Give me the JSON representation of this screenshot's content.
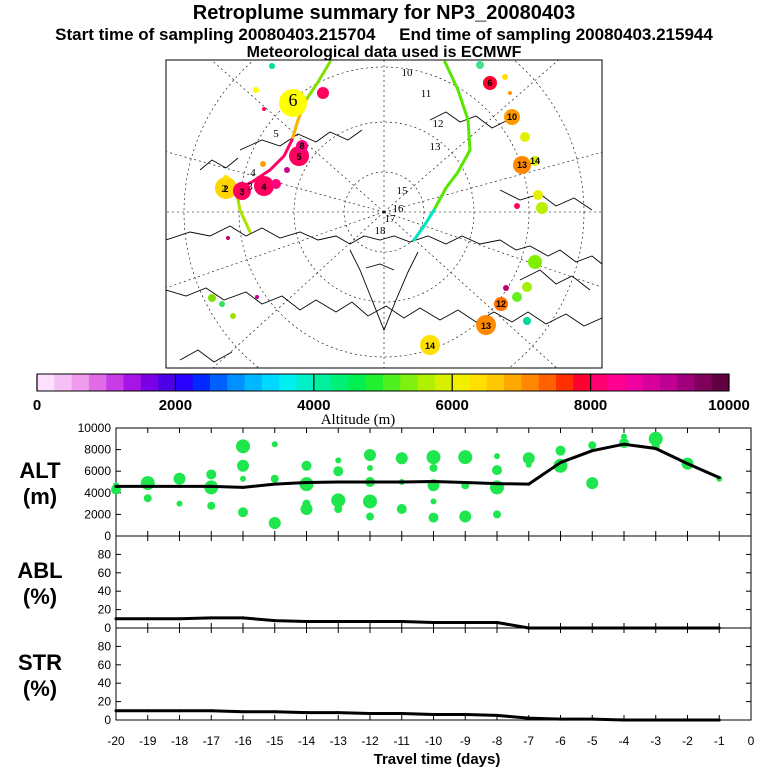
{
  "header": {
    "title": "Retroplume summary for NP3_20080403",
    "sampling_line": "Start time of sampling 20080403.215704     End time of sampling 20080403.215944",
    "met_line": "Meteorological data used is ECMWF"
  },
  "map": {
    "day_labels": [
      {
        "text": "6",
        "value": 6
      },
      {
        "text": "5",
        "value": 5
      },
      {
        "text": "4",
        "value": 4
      },
      {
        "text": "3",
        "value": 3
      },
      {
        "text": "2",
        "value": 2
      },
      {
        "text": "10",
        "value": 10
      },
      {
        "text": "11",
        "value": 11
      },
      {
        "text": "12",
        "value": 12
      },
      {
        "text": "13",
        "value": 13
      },
      {
        "text": "15",
        "value": 15
      },
      {
        "text": "16",
        "value": 16
      },
      {
        "text": "17",
        "value": 17
      },
      {
        "text": "18",
        "value": 18
      }
    ],
    "cluster_labels": [
      "6",
      "10",
      "13",
      "14",
      "12",
      "13",
      "14",
      "2",
      "3",
      "4",
      "5",
      "8"
    ]
  },
  "colorbar": {
    "title": "Altitude (m)",
    "ticks": [
      "0",
      "2000",
      "4000",
      "6000",
      "8000",
      "10000"
    ],
    "colors": [
      "#fde0fd",
      "#f6c0f6",
      "#ef9cef",
      "#e06ce8",
      "#c83ce6",
      "#a614e6",
      "#7a00e6",
      "#5000e6",
      "#2a00ff",
      "#0028ff",
      "#0060ff",
      "#0090ff",
      "#00b8ff",
      "#00d8ff",
      "#00f0f0",
      "#00f0c8",
      "#00f0a0",
      "#00f078",
      "#00f050",
      "#20f030",
      "#50f020",
      "#80f010",
      "#b0f000",
      "#d8f000",
      "#f0f000",
      "#ffe000",
      "#ffc800",
      "#ffa800",
      "#ff8800",
      "#ff6000",
      "#ff3000",
      "#ff0030",
      "#ff0070",
      "#ff0090",
      "#f000a0",
      "#d8009c",
      "#c00094",
      "#a0007c",
      "#80005c",
      "#600040"
    ]
  },
  "chart_data": [
    {
      "type": "line",
      "panel": "ALT",
      "ylabel": "ALT (m)",
      "ylabel_lines": [
        "ALT",
        "(m)"
      ],
      "ylim": [
        0,
        10000
      ],
      "yticks": [
        "0",
        "2000",
        "4000",
        "6000",
        "8000",
        "10000"
      ],
      "x": [
        -20,
        -19,
        -18,
        -17,
        -16,
        -15,
        -14,
        -13,
        -12,
        -11,
        -10,
        -9,
        -8,
        -7,
        -6,
        -5,
        -4,
        -3,
        -2,
        -1
      ],
      "mean_line": [
        4600,
        4600,
        4600,
        4600,
        4500,
        4800,
        4950,
        5000,
        5000,
        5000,
        5050,
        4950,
        4850,
        4800,
        6800,
        7900,
        8500,
        8100,
        6700,
        5400
      ],
      "clusters": [
        {
          "x": -20,
          "y": 4700
        },
        {
          "x": -20,
          "y": 4300
        },
        {
          "x": -19,
          "y": 4900
        },
        {
          "x": -19,
          "y": 3500
        },
        {
          "x": -18,
          "y": 5300
        },
        {
          "x": -18,
          "y": 3000
        },
        {
          "x": -17,
          "y": 5700
        },
        {
          "x": -17,
          "y": 4500
        },
        {
          "x": -17,
          "y": 2800
        },
        {
          "x": -16,
          "y": 6500
        },
        {
          "x": -16,
          "y": 5300
        },
        {
          "x": -16,
          "y": 2200
        },
        {
          "x": -16,
          "y": 8300
        },
        {
          "x": -15,
          "y": 5300
        },
        {
          "x": -15,
          "y": 1200
        },
        {
          "x": -15,
          "y": 8500
        },
        {
          "x": -14,
          "y": 6500
        },
        {
          "x": -14,
          "y": 4800
        },
        {
          "x": -14,
          "y": 3000
        },
        {
          "x": -14,
          "y": 2500
        },
        {
          "x": -13,
          "y": 7000
        },
        {
          "x": -13,
          "y": 6000
        },
        {
          "x": -13,
          "y": 3300
        },
        {
          "x": -13,
          "y": 2500
        },
        {
          "x": -12,
          "y": 7500
        },
        {
          "x": -12,
          "y": 6300
        },
        {
          "x": -12,
          "y": 5000
        },
        {
          "x": -12,
          "y": 3200
        },
        {
          "x": -12,
          "y": 1800
        },
        {
          "x": -11,
          "y": 7200
        },
        {
          "x": -11,
          "y": 5000
        },
        {
          "x": -11,
          "y": 2500
        },
        {
          "x": -10,
          "y": 7300
        },
        {
          "x": -10,
          "y": 6300
        },
        {
          "x": -10,
          "y": 4700
        },
        {
          "x": -10,
          "y": 3200
        },
        {
          "x": -10,
          "y": 1700
        },
        {
          "x": -9,
          "y": 7300
        },
        {
          "x": -9,
          "y": 4700
        },
        {
          "x": -9,
          "y": 1800
        },
        {
          "x": -8,
          "y": 7400
        },
        {
          "x": -8,
          "y": 6100
        },
        {
          "x": -8,
          "y": 4500
        },
        {
          "x": -8,
          "y": 2000
        },
        {
          "x": -7,
          "y": 7200
        },
        {
          "x": -7,
          "y": 6600
        },
        {
          "x": -6,
          "y": 7900
        },
        {
          "x": -6,
          "y": 6500
        },
        {
          "x": -5,
          "y": 8400
        },
        {
          "x": -5,
          "y": 4900
        },
        {
          "x": -4,
          "y": 9200
        },
        {
          "x": -4,
          "y": 8600
        },
        {
          "x": -3,
          "y": 9000
        },
        {
          "x": -3,
          "y": 8300
        },
        {
          "x": -2,
          "y": 6700
        },
        {
          "x": -1,
          "y": 5300
        }
      ]
    },
    {
      "type": "line",
      "panel": "ABL",
      "ylabel": "ABL (%)",
      "ylabel_lines": [
        "ABL",
        "(%)"
      ],
      "ylim": [
        0,
        100
      ],
      "yticks": [
        "0",
        "20",
        "40",
        "60",
        "80"
      ],
      "x": [
        -20,
        -19,
        -18,
        -17,
        -16,
        -15,
        -14,
        -13,
        -12,
        -11,
        -10,
        -9,
        -8,
        -7,
        -6,
        -5,
        -4,
        -3,
        -2,
        -1
      ],
      "values": [
        10,
        10,
        10,
        11,
        11,
        8,
        7,
        7,
        7,
        7,
        6,
        6,
        6,
        0,
        0,
        0,
        0,
        0,
        0,
        0
      ]
    },
    {
      "type": "line",
      "panel": "STR",
      "ylabel": "STR (%)",
      "ylabel_lines": [
        "STR",
        "(%)"
      ],
      "ylim": [
        0,
        100
      ],
      "yticks": [
        "0",
        "20",
        "40",
        "60",
        "80"
      ],
      "x": [
        -20,
        -19,
        -18,
        -17,
        -16,
        -15,
        -14,
        -13,
        -12,
        -11,
        -10,
        -9,
        -8,
        -7,
        -6,
        -5,
        -4,
        -3,
        -2,
        -1
      ],
      "values": [
        10,
        10,
        10,
        10,
        9,
        9,
        8,
        8,
        7,
        7,
        6,
        6,
        5,
        2,
        1,
        1,
        0,
        0,
        0,
        0
      ]
    }
  ],
  "xaxis": {
    "xlabel": "Travel time (days)",
    "xlim": [
      -20,
      0
    ],
    "ticks": [
      "-20",
      "-19",
      "-18",
      "-17",
      "-16",
      "-15",
      "-14",
      "-13",
      "-12",
      "-11",
      "-10",
      "-9",
      "-8",
      "-7",
      "-6",
      "-5",
      "-4",
      "-3",
      "-2",
      "-1",
      "0"
    ]
  }
}
